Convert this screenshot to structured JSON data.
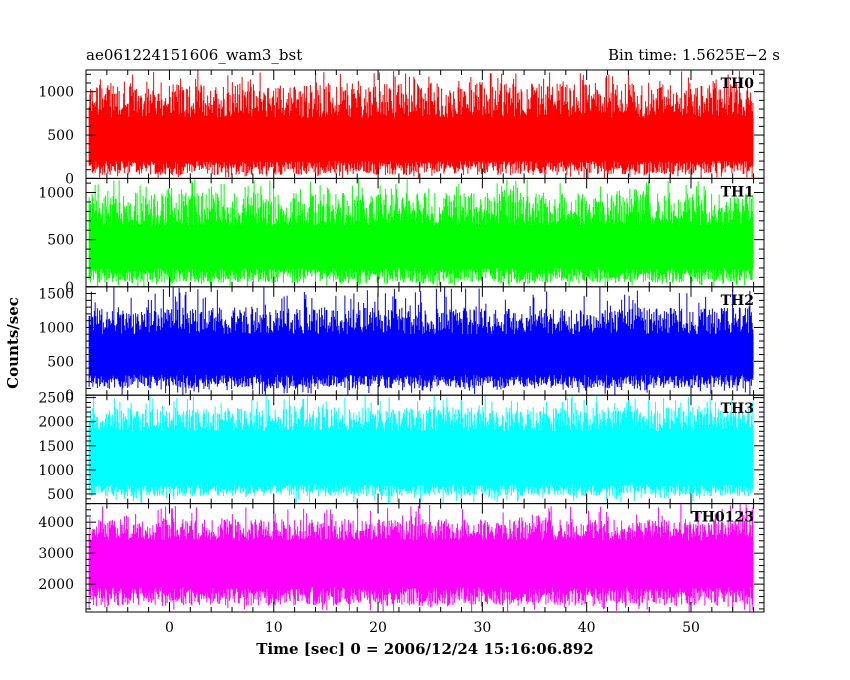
{
  "chart_data": {
    "type": "line",
    "title_left": "ae061224151606_wam3_bst",
    "title_right": "Bin time: 1.5625E−2 s",
    "xlabel": "Time [sec] 0 = 2006/12/24 15:16:06.892",
    "ylabel": "Counts/sec",
    "xlim": [
      -8,
      57
    ],
    "x_ticks": [
      0,
      10,
      20,
      30,
      40,
      50
    ],
    "x_data_range": [
      -7.7,
      56
    ],
    "panels": [
      {
        "name": "TH0",
        "color": "#ff0000",
        "ylim": [
          0,
          1250
        ],
        "y_ticks": [
          0,
          500,
          1000
        ],
        "baseline_range": [
          40,
          200
        ],
        "typical_top_range": [
          700,
          1100
        ],
        "peak_max": 1250
      },
      {
        "name": "TH1",
        "color": "#00ff00",
        "ylim": [
          0,
          1150
        ],
        "y_ticks": [
          0,
          500,
          1000
        ],
        "baseline_range": [
          40,
          200
        ],
        "typical_top_range": [
          650,
          1000
        ],
        "peak_max": 1150
      },
      {
        "name": "TH2",
        "color": "#0000ff",
        "ylim": [
          0,
          1600
        ],
        "y_ticks": [
          0,
          500,
          1000,
          1500
        ],
        "baseline_range": [
          100,
          300
        ],
        "typical_top_range": [
          900,
          1300
        ],
        "peak_max": 1600
      },
      {
        "name": "TH3",
        "color": "#00ffff",
        "ylim": [
          300,
          2550
        ],
        "y_ticks": [
          500,
          1000,
          1500,
          2000,
          2500
        ],
        "baseline_range": [
          450,
          700
        ],
        "typical_top_range": [
          1800,
          2300
        ],
        "peak_max": 2550
      },
      {
        "name": "TH0123",
        "color": "#ff00ff",
        "ylim": [
          1100,
          4600
        ],
        "y_ticks": [
          2000,
          3000,
          4000
        ],
        "baseline_range": [
          1300,
          1900
        ],
        "typical_top_range": [
          3400,
          4100
        ],
        "peak_max": 4600
      }
    ]
  }
}
